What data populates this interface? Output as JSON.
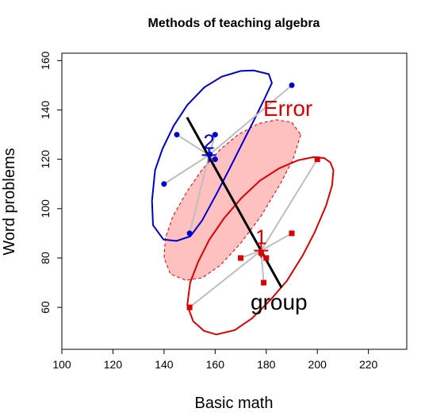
{
  "chart_data": {
    "type": "scatter",
    "title": "Methods of teaching algebra",
    "xlabel": "Basic math",
    "ylabel": "Word problems",
    "xlim": [
      100,
      235
    ],
    "ylim": [
      43,
      163
    ],
    "xticks": [
      "100",
      "120",
      "140",
      "160",
      "180",
      "200",
      "220"
    ],
    "yticks": [
      "60",
      "80",
      "100",
      "120",
      "140",
      "160"
    ],
    "series": [
      {
        "name": "2",
        "color": "#0000CD",
        "marker": "circle",
        "points": [
          {
            "x": 190,
            "y": 150
          },
          {
            "x": 145,
            "y": 130
          },
          {
            "x": 160,
            "y": 130
          },
          {
            "x": 158,
            "y": 122
          },
          {
            "x": 160,
            "y": 120
          },
          {
            "x": 140,
            "y": 110
          },
          {
            "x": 150,
            "y": 90
          }
        ],
        "mean": {
          "x": 157.6,
          "y": 121.7
        },
        "ellipse_points": [
          [
            182.2,
            150.9
          ],
          [
            179.3,
            144.5
          ],
          [
            175.5,
            136.5
          ],
          [
            170.8,
            126.8
          ],
          [
            165.8,
            116.5
          ],
          [
            160.3,
            105.5
          ],
          [
            154.9,
            95.2
          ],
          [
            150.3,
            88.8
          ],
          [
            144.9,
            86.9
          ],
          [
            139.8,
            87.5
          ],
          [
            135.7,
            93.3
          ],
          [
            135.3,
            103.2
          ],
          [
            136.5,
            115.6
          ],
          [
            139.4,
            124.3
          ],
          [
            143.8,
            133.6
          ],
          [
            149.1,
            142.0
          ],
          [
            155.8,
            149.2
          ],
          [
            162.6,
            153.5
          ],
          [
            170.0,
            155.8
          ],
          [
            175.1,
            156.0
          ],
          [
            181.0,
            154.5
          ]
        ]
      },
      {
        "name": "1",
        "color": "#DD0000",
        "marker": "square",
        "points": [
          {
            "x": 200,
            "y": 120
          },
          {
            "x": 190,
            "y": 90
          },
          {
            "x": 178,
            "y": 82
          },
          {
            "x": 180,
            "y": 80
          },
          {
            "x": 170,
            "y": 80
          },
          {
            "x": 179,
            "y": 70
          },
          {
            "x": 150,
            "y": 60
          }
        ],
        "mean": {
          "x": 178.0,
          "y": 83.0
        },
        "ellipse_points": [
          [
            205.1,
            118.7
          ],
          [
            206.3,
            115.6
          ],
          [
            205.8,
            109.5
          ],
          [
            203.4,
            101.2
          ],
          [
            198.9,
            90.3
          ],
          [
            194.4,
            81.3
          ],
          [
            188.1,
            70.8
          ],
          [
            181.7,
            63.1
          ],
          [
            174.4,
            55.5
          ],
          [
            167.7,
            50.8
          ],
          [
            160.5,
            49.0
          ],
          [
            155.6,
            50.5
          ],
          [
            151.4,
            54.4
          ],
          [
            149.1,
            60.9
          ],
          [
            150.2,
            70.0
          ],
          [
            153.3,
            78.3
          ],
          [
            157.7,
            87.4
          ],
          [
            163.5,
            96.1
          ],
          [
            170.4,
            104.4
          ],
          [
            177.6,
            111.4
          ],
          [
            185.2,
            116.4
          ],
          [
            192.4,
            119.6
          ],
          [
            198.5,
            120.9
          ],
          [
            202.7,
            120.5
          ]
        ]
      }
    ],
    "error_ellipse": {
      "label": "Error",
      "fill": "#FFC0C0",
      "stroke": "#DD0000",
      "points": [
        [
          193.5,
          130.0
        ],
        [
          190.5,
          120.0
        ],
        [
          185.5,
          110.0
        ],
        [
          178.0,
          97.0
        ],
        [
          170.0,
          86.0
        ],
        [
          162.0,
          77.0
        ],
        [
          155.0,
          72.0
        ],
        [
          148.5,
          71.0
        ],
        [
          142.5,
          73.5
        ],
        [
          140.0,
          80.0
        ],
        [
          140.5,
          88.0
        ],
        [
          143.5,
          97.0
        ],
        [
          149.0,
          107.0
        ],
        [
          155.0,
          116.0
        ],
        [
          162.0,
          124.0
        ],
        [
          169.0,
          130.0
        ],
        [
          177.0,
          134.5
        ],
        [
          184.0,
          136.0
        ],
        [
          190.0,
          135.0
        ]
      ]
    },
    "group_line": {
      "label": "group",
      "start": {
        "x": 149,
        "y": 137
      },
      "end": {
        "x": 186,
        "y": 68
      }
    }
  }
}
